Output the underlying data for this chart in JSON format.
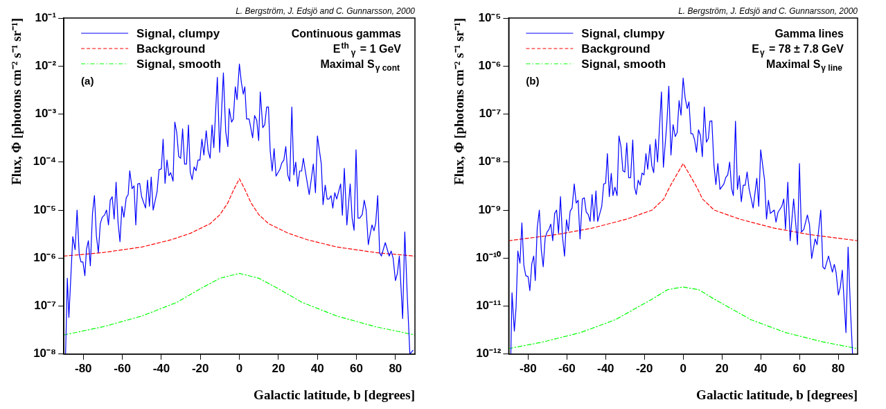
{
  "chart_data": [
    {
      "type": "line",
      "xlabel": "Galactic latitude, b [degrees]",
      "ylabel": "Flux, Φ [photons cm⁻² s⁻¹ sr⁻¹]",
      "log": "y",
      "grid": false,
      "legend": "top left",
      "marker": "none",
      "xlim": [
        -90,
        90
      ],
      "xticks": [
        -80,
        -60,
        -40,
        -20,
        0,
        20,
        40,
        60,
        80
      ],
      "ylim": [
        1e-08,
        0.1
      ],
      "yticks": [
        {
          "value": 1e-08,
          "label": "10⁻⁸"
        },
        {
          "value": 1e-07,
          "label": "10⁻⁷"
        },
        {
          "value": 1e-06,
          "label": "10⁻⁶"
        },
        {
          "value": 1e-05,
          "label": "10⁻⁵"
        },
        {
          "value": 0.0001,
          "label": "10⁻⁴"
        },
        {
          "value": 0.001,
          "label": "10⁻³"
        },
        {
          "value": 0.01,
          "label": "10⁻²"
        },
        {
          "value": 0.1,
          "label": "10⁻¹"
        }
      ],
      "annotations": [
        "L. Bergström, J. Edsjö and C. Gunnarsson, 2000",
        "Continuous gammas",
        "E$^{th}$$_{γ}$ = 1 GeV",
        "Maximal S$_{γ cont}$",
        "(a)"
      ],
      "series": [
        {
          "name": "Signal, clumpy",
          "color": "#0000ff",
          "line_style": "solid",
          "x": [
            -89.1,
            -88.2,
            -87.4,
            -85.4,
            -84.2,
            -83.2,
            -82.1,
            -81.2,
            -80.2,
            -79.2,
            -78.4,
            -77.4,
            -76.4,
            -75.3,
            -74.3,
            -73.3,
            -72.3,
            -71.3,
            -70.3,
            -69.1,
            -68.1,
            -67.1,
            -66.2,
            -65.2,
            -64.2,
            -63.2,
            -62.2,
            -61.2,
            -60.2,
            -59.2,
            -58,
            -57,
            -56.2,
            -55,
            -54,
            -53.1,
            -52.1,
            -51.1,
            -50.1,
            -48.1,
            -47.1,
            -46.1,
            -45.2,
            -44.2,
            -42.2,
            -41.2,
            -40,
            -39.1,
            -38.1,
            -37.1,
            -36.1,
            -35.2,
            -34,
            -33.1,
            -32.1,
            -31.1,
            -30.1,
            -29.1,
            -28.1,
            -27.1,
            -26.1,
            -25.2,
            -24.2,
            -23.2,
            -22.2,
            -21.2,
            -20.2,
            -19.2,
            -18.2,
            -17,
            -16,
            -15,
            -14,
            -13.1,
            -11.3,
            -10.1,
            -8.2,
            -7,
            -5.9,
            -5.2,
            -4,
            -3.1,
            -2.1,
            -1.2,
            0,
            1,
            2,
            2.8,
            3.7,
            5,
            6.8,
            7.8,
            8.9,
            9.9,
            10.7,
            12,
            13,
            14,
            14.9,
            15.8,
            16.8,
            17.8,
            18.8,
            20.8,
            21.7,
            22.8,
            23.8,
            24.8,
            25.8,
            26.9,
            27.9,
            28.9,
            29.9,
            30.9,
            31.9,
            32.8,
            33.8,
            35.8,
            37.9,
            39,
            40,
            42,
            42.9,
            44,
            45,
            46,
            47,
            47.9,
            48.9,
            49.9,
            51.9,
            52.8,
            53.8,
            55.1,
            56.8,
            57.8,
            58.8,
            59.8,
            60.8,
            61.7,
            63,
            64,
            65,
            66.1,
            67,
            68,
            69,
            69.9,
            70.9,
            71.9,
            72.8,
            74.8,
            76.8,
            77.8,
            78.8,
            80,
            81,
            82,
            83.7,
            84.8,
            86,
            87.4,
            89
          ],
          "values": [
            1e-08,
            3.8e-07,
            5.8e-08,
            2.8e-06,
            1.5e-06,
            1e-05,
            1.2e-06,
            8.3e-07,
            8.3e-07,
            4.3e-07,
            1.5e-06,
            2.3e-06,
            6.9e-07,
            8.5e-06,
            2e-05,
            2.9e-06,
            1.3e-06,
            5.2e-06,
            7.1e-06,
            7.9e-06,
            1e-05,
            4.9e-06,
            1.6e-05,
            1.9e-05,
            6.5e-06,
            3.8e-05,
            5.5e-06,
            2.2e-06,
            1.2e-05,
            7.1e-06,
            1.8e-05,
            2.1e-05,
            6.6e-05,
            2.8e-05,
            3.2e-05,
            4.9e-06,
            3.5e-05,
            3.6e-05,
            1.9e-05,
            1.1e-05,
            4.2e-05,
            1.2e-05,
            4.9e-05,
            1e-05,
            2.4e-05,
            6.9e-05,
            7.2e-05,
            0.0003,
            3.6e-05,
            0.00011,
            5.2e-05,
            6e-05,
            4e-05,
            0.00068,
            0.00041,
            0.00013,
            0.00012,
            0.00049,
            9.1e-05,
            9.1e-05,
            0.00059,
            6.2e-05,
            4.3e-05,
            7.9e-05,
            6.6e-05,
            0.00011,
            0.00011,
            0.0003,
            0.00014,
            0.00045,
            0.00017,
            0.00012,
            0.00059,
            0.0002,
            0.0058,
            0.00016,
            0.0072,
            0.00043,
            0.00021,
            0.0013,
            0.00068,
            0.00079,
            0.0037,
            0.002,
            0.011,
            0.0046,
            0.0026,
            0.0037,
            0.00079,
            0.00079,
            0.00032,
            0.00093,
            0.00074,
            0.00028,
            0.0029,
            0.00052,
            0.0006,
            0.0014,
            0.0014,
            0.00017,
            6.5e-05,
            0.00019,
            5.1e-05,
            7.1e-05,
            9.5e-05,
            0.00011,
            0.00021,
            5.4e-05,
            4e-05,
            0.0014,
            5.4e-05,
            0.0001,
            3.1e-05,
            6.5e-05,
            6.5e-05,
            0.00012,
            6.5e-05,
            2.1e-05,
            9.1e-05,
            2.3e-05,
            0.00035,
            9.1e-05,
            1.3e-05,
            3.3e-05,
            1.7e-05,
            1.7e-05,
            2e-05,
            1.1e-05,
            2.3e-05,
            1.7e-05,
            3.5e-05,
            7.8e-06,
            7.4e-05,
            4.9e-06,
            3.5e-05,
            6.8e-06,
            3.8e-06,
            0.00018,
            6.8e-06,
            6.8e-06,
            8.1e-06,
            1.6e-05,
            1e-05,
            1.9e-06,
            3.1e-06,
            4.9e-06,
            3.7e-06,
            5.4e-06,
            2e-05,
            1.3e-06,
            1.1e-06,
            2.1e-06,
            1.1e-06,
            1.4e-06,
            1e-06,
            3.4e-07,
            4.8e-07,
            1.1e-06,
            5.5e-08,
            3.5e-06,
            1.9e-07,
            1e-08,
            1.2e-08
          ]
        },
        {
          "name": "Background",
          "color": "#ff0000",
          "line_style": "dashed",
          "x": [
            -90,
            -70,
            -50,
            -35,
            -25,
            -15,
            -10,
            -6,
            -3,
            0,
            3,
            6,
            10,
            15,
            25,
            35,
            50,
            70,
            90
          ],
          "values": [
            1.1e-06,
            1.3e-06,
            1.7e-06,
            2.4e-06,
            3.3e-06,
            5.2e-06,
            8e-06,
            1.4e-05,
            2.6e-05,
            4.5e-05,
            2.6e-05,
            1.4e-05,
            8e-06,
            5.2e-06,
            3.3e-06,
            2.4e-06,
            1.7e-06,
            1.3e-06,
            1.1e-06
          ]
        },
        {
          "name": "Signal, smooth",
          "color": "#00ff00",
          "line_style": "dotted",
          "x": [
            -90,
            -70,
            -50,
            -32,
            -20,
            -10,
            0,
            10,
            20,
            32,
            50,
            70,
            90
          ],
          "values": [
            2.5e-08,
            3.7e-08,
            6.2e-08,
            1.2e-07,
            2.3e-07,
            3.8e-07,
            4.8e-07,
            3.8e-07,
            2.3e-07,
            1.2e-07,
            6.2e-08,
            3.7e-08,
            2.5e-08
          ]
        }
      ]
    },
    {
      "type": "line",
      "xlabel": "Galactic latitude, b [degrees]",
      "ylabel": "Flux, Φ [photons cm⁻² s⁻¹ sr⁻¹]",
      "log": "y",
      "grid": false,
      "legend": "top left",
      "marker": "none",
      "xlim": [
        -90,
        90
      ],
      "xticks": [
        -80,
        -60,
        -40,
        -20,
        0,
        20,
        40,
        60,
        80
      ],
      "ylim": [
        1e-12,
        1e-05
      ],
      "yticks": [
        {
          "value": 1e-12,
          "label": "10⁻¹²"
        },
        {
          "value": 1e-11,
          "label": "10⁻¹¹"
        },
        {
          "value": 1e-10,
          "label": "10⁻¹⁰"
        },
        {
          "value": 1e-09,
          "label": "10⁻⁹"
        },
        {
          "value": 1e-08,
          "label": "10⁻⁸"
        },
        {
          "value": 1e-07,
          "label": "10⁻⁷"
        },
        {
          "value": 1e-06,
          "label": "10⁻⁶"
        },
        {
          "value": 1e-05,
          "label": "10⁻⁵"
        }
      ],
      "annotations": [
        "L. Bergström, J. Edsjö and C. Gunnarsson, 2000",
        "Gamma lines",
        "E$_{γ}$ = 78 ± 7.8 GeV",
        "Maximal S$_{γ line}$",
        "(b)"
      ],
      "series": [
        {
          "name": "Signal, clumpy",
          "color": "#0000ff",
          "line_style": "solid",
          "x": [
            -88.9,
            -88.3,
            -87.1,
            -86.2,
            -85.3,
            -84.2,
            -83.2,
            -82.2,
            -81.2,
            -80,
            -79.1,
            -78.1,
            -77.1,
            -76.3,
            -75.3,
            -74.2,
            -73.2,
            -72.2,
            -71.2,
            -70.2,
            -69.3,
            -68.3,
            -67.3,
            -66.3,
            -65.3,
            -64.3,
            -63.3,
            -62.3,
            -61.2,
            -60.2,
            -59.2,
            -58.3,
            -57.3,
            -56.2,
            -55.2,
            -54.2,
            -53.2,
            -52,
            -51,
            -50,
            -49,
            -48,
            -47,
            -46,
            -45,
            -44.1,
            -42,
            -41,
            -40,
            -39.1,
            -38.1,
            -37.1,
            -36.2,
            -35.2,
            -34.1,
            -33.1,
            -32.1,
            -31.1,
            -30.1,
            -29.1,
            -28.1,
            -27.1,
            -26,
            -25.1,
            -24.2,
            -23.2,
            -22.2,
            -21.2,
            -20.2,
            -19.2,
            -18.3,
            -17.1,
            -16.2,
            -15.2,
            -14.2,
            -13.2,
            -11.2,
            -10.2,
            -8.4,
            -7.4,
            -6.3,
            -5.2,
            -4.1,
            -3.1,
            -2.1,
            -1.1,
            0,
            1,
            2.1,
            3,
            4,
            4.9,
            5.9,
            6.9,
            7.9,
            8.9,
            9.9,
            10.9,
            12,
            13,
            13.8,
            14.8,
            15.9,
            16.9,
            17.9,
            19,
            21,
            22,
            23,
            24,
            25,
            25.9,
            27,
            28,
            29,
            30,
            31,
            32,
            33,
            34,
            36.1,
            38,
            39,
            40,
            42,
            43,
            44,
            45,
            47,
            47.9,
            48.9,
            50.9,
            51.9,
            52.8,
            54,
            55.2,
            57,
            59,
            60,
            61,
            62.2,
            64.1,
            65.2,
            66.3,
            68.1,
            69.1,
            71,
            72.1,
            73.1,
            75,
            77,
            78,
            78.9,
            80.1,
            81.1,
            82.1,
            84,
            85.1,
            86.4,
            87.4
          ],
          "values": [
            1e-12,
            1.9e-11,
            3e-12,
            9.5e-12,
            1.4e-10,
            7.8e-11,
            5.4e-10,
            7.1e-11,
            4.3e-11,
            4.1e-11,
            2.1e-11,
            7.6e-11,
            1.1e-10,
            3.4e-11,
            4.2e-10,
            1e-09,
            1.5e-10,
            6.6e-11,
            2.6e-10,
            3.5e-10,
            3.9e-10,
            5.1e-10,
            2.3e-10,
            8.5e-10,
            1e-09,
            3.3e-10,
            1.9e-09,
            2.9e-10,
            1.1e-10,
            6.3e-10,
            3.7e-10,
            9.5e-10,
            1.1e-09,
            3.5e-09,
            1.4e-09,
            1.6e-09,
            2.5e-10,
            1.7e-09,
            1.8e-09,
            9.1e-10,
            8.1e-10,
            5.8e-10,
            2.1e-09,
            5.9e-10,
            2.5e-09,
            5.8e-10,
            1.2e-09,
            3.5e-09,
            3.6e-09,
            1.5e-08,
            1.9e-09,
            5.8e-09,
            2e-09,
            3e-09,
            2e-09,
            3.5e-08,
            2.1e-08,
            6.6e-09,
            6.2e-09,
            2.5e-08,
            4.7e-09,
            4.7e-09,
            2.9e-08,
            3e-09,
            2.1e-09,
            4.2e-09,
            3.3e-09,
            5.9e-09,
            5.4e-09,
            1.5e-08,
            7.1e-09,
            2.3e-08,
            8.5e-09,
            6e-09,
            3e-08,
            1e-08,
            2.9e-07,
            7.8e-09,
            6.6e-08,
            3.8e-07,
            1.4e-08,
            6e-08,
            3.4e-08,
            4.1e-08,
            1.9e-07,
            9.5e-08,
            5.6e-07,
            2.2e-07,
            1.3e-07,
            1.8e-07,
            3.9e-08,
            3.9e-08,
            2.9e-08,
            1.6e-08,
            4.7e-08,
            3.6e-08,
            1.3e-08,
            1.4e-07,
            2.6e-08,
            3.1e-08,
            7.1e-08,
            7.2e-08,
            8.5e-09,
            3.4e-09,
            9.3e-09,
            2.7e-09,
            3.5e-09,
            4.8e-09,
            5.4e-09,
            1e-08,
            2.8e-09,
            2e-09,
            7.1e-08,
            2.7e-09,
            5.2e-09,
            1.5e-09,
            3.3e-09,
            3.3e-09,
            6.2e-09,
            2.8e-09,
            1.1e-09,
            4.6e-09,
            1.2e-09,
            1.8e-08,
            4.2e-09,
            6.5e-10,
            1.6e-09,
            8.5e-10,
            1e-09,
            5.6e-10,
            8.9e-10,
            1.2e-09,
            1.7e-09,
            4e-10,
            3.8e-09,
            2.3e-10,
            1.7e-09,
            1.9e-10,
            9.3e-09,
            3.5e-10,
            3.9e-10,
            7.9e-10,
            4.9e-10,
            9.8e-11,
            2.5e-10,
            1.9e-10,
            1e-09,
            6.5e-11,
            5.9e-11,
            1.1e-10,
            5.1e-11,
            7.4e-11,
            5e-11,
            1.7e-11,
            2.5e-11,
            5.6e-11,
            2.8e-12,
            1.7e-10,
            7.2e-12,
            1e-12
          ]
        },
        {
          "name": "Background",
          "color": "#ff0000",
          "line_style": "dashed",
          "x": [
            -90,
            -65,
            -47,
            -29,
            -16,
            -10,
            -7,
            -4,
            0,
            4,
            7,
            10,
            16,
            29,
            47,
            65,
            90
          ],
          "values": [
            2.3e-10,
            3.1e-10,
            4.2e-10,
            6.5e-10,
            1e-09,
            1.7e-09,
            3e-09,
            4.9e-09,
            9.3e-09,
            4.9e-09,
            3e-09,
            1.7e-09,
            1e-09,
            6.5e-10,
            4.2e-10,
            3.1e-10,
            2.3e-10
          ]
        },
        {
          "name": "Signal, smooth",
          "color": "#00ff00",
          "line_style": "dotted",
          "x": [
            -90,
            -72,
            -53,
            -35,
            -16,
            -8,
            0,
            8,
            16,
            35,
            53,
            72,
            90
          ],
          "values": [
            1.3e-12,
            1.8e-12,
            2.8e-12,
            5.2e-12,
            1.4e-11,
            2.2e-11,
            2.5e-11,
            2.2e-11,
            1.4e-11,
            5.2e-12,
            2.8e-12,
            1.8e-12,
            1.3e-12
          ]
        }
      ]
    }
  ]
}
